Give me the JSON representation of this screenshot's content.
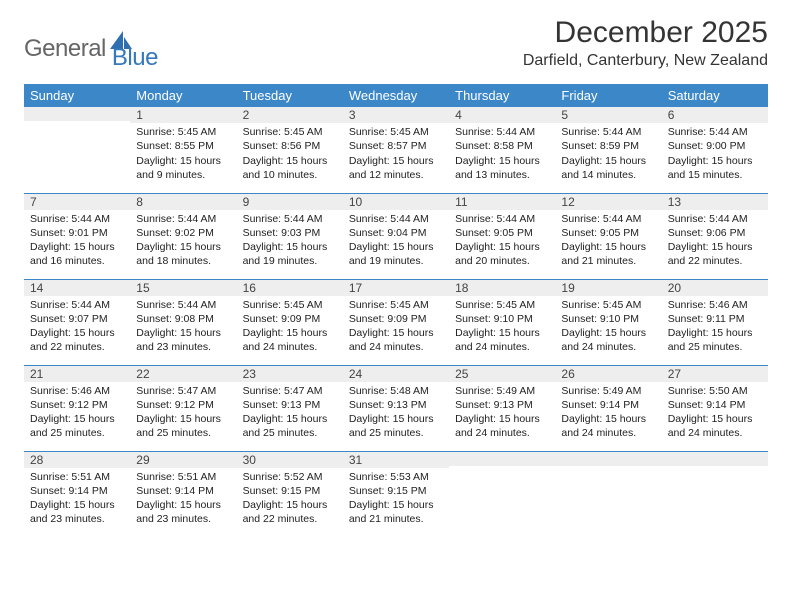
{
  "logo": {
    "text_general": "General",
    "text_blue": "Blue"
  },
  "title": "December 2025",
  "location": "Darfield, Canterbury, New Zealand",
  "colors": {
    "header_bg": "#3b87c8",
    "header_text": "#ffffff",
    "daynum_bg": "#eeeeee",
    "sep_line": "#3b87c8",
    "body_text": "#222222",
    "title_text": "#343434",
    "logo_gray": "#666666",
    "logo_blue": "#3478bd",
    "page_bg": "#ffffff"
  },
  "dow": [
    "Sunday",
    "Monday",
    "Tuesday",
    "Wednesday",
    "Thursday",
    "Friday",
    "Saturday"
  ],
  "weeks": [
    [
      {
        "n": "",
        "sr": "",
        "ss": "",
        "dl": ""
      },
      {
        "n": "1",
        "sr": "Sunrise: 5:45 AM",
        "ss": "Sunset: 8:55 PM",
        "dl": "Daylight: 15 hours and 9 minutes."
      },
      {
        "n": "2",
        "sr": "Sunrise: 5:45 AM",
        "ss": "Sunset: 8:56 PM",
        "dl": "Daylight: 15 hours and 10 minutes."
      },
      {
        "n": "3",
        "sr": "Sunrise: 5:45 AM",
        "ss": "Sunset: 8:57 PM",
        "dl": "Daylight: 15 hours and 12 minutes."
      },
      {
        "n": "4",
        "sr": "Sunrise: 5:44 AM",
        "ss": "Sunset: 8:58 PM",
        "dl": "Daylight: 15 hours and 13 minutes."
      },
      {
        "n": "5",
        "sr": "Sunrise: 5:44 AM",
        "ss": "Sunset: 8:59 PM",
        "dl": "Daylight: 15 hours and 14 minutes."
      },
      {
        "n": "6",
        "sr": "Sunrise: 5:44 AM",
        "ss": "Sunset: 9:00 PM",
        "dl": "Daylight: 15 hours and 15 minutes."
      }
    ],
    [
      {
        "n": "7",
        "sr": "Sunrise: 5:44 AM",
        "ss": "Sunset: 9:01 PM",
        "dl": "Daylight: 15 hours and 16 minutes."
      },
      {
        "n": "8",
        "sr": "Sunrise: 5:44 AM",
        "ss": "Sunset: 9:02 PM",
        "dl": "Daylight: 15 hours and 18 minutes."
      },
      {
        "n": "9",
        "sr": "Sunrise: 5:44 AM",
        "ss": "Sunset: 9:03 PM",
        "dl": "Daylight: 15 hours and 19 minutes."
      },
      {
        "n": "10",
        "sr": "Sunrise: 5:44 AM",
        "ss": "Sunset: 9:04 PM",
        "dl": "Daylight: 15 hours and 19 minutes."
      },
      {
        "n": "11",
        "sr": "Sunrise: 5:44 AM",
        "ss": "Sunset: 9:05 PM",
        "dl": "Daylight: 15 hours and 20 minutes."
      },
      {
        "n": "12",
        "sr": "Sunrise: 5:44 AM",
        "ss": "Sunset: 9:05 PM",
        "dl": "Daylight: 15 hours and 21 minutes."
      },
      {
        "n": "13",
        "sr": "Sunrise: 5:44 AM",
        "ss": "Sunset: 9:06 PM",
        "dl": "Daylight: 15 hours and 22 minutes."
      }
    ],
    [
      {
        "n": "14",
        "sr": "Sunrise: 5:44 AM",
        "ss": "Sunset: 9:07 PM",
        "dl": "Daylight: 15 hours and 22 minutes."
      },
      {
        "n": "15",
        "sr": "Sunrise: 5:44 AM",
        "ss": "Sunset: 9:08 PM",
        "dl": "Daylight: 15 hours and 23 minutes."
      },
      {
        "n": "16",
        "sr": "Sunrise: 5:45 AM",
        "ss": "Sunset: 9:09 PM",
        "dl": "Daylight: 15 hours and 24 minutes."
      },
      {
        "n": "17",
        "sr": "Sunrise: 5:45 AM",
        "ss": "Sunset: 9:09 PM",
        "dl": "Daylight: 15 hours and 24 minutes."
      },
      {
        "n": "18",
        "sr": "Sunrise: 5:45 AM",
        "ss": "Sunset: 9:10 PM",
        "dl": "Daylight: 15 hours and 24 minutes."
      },
      {
        "n": "19",
        "sr": "Sunrise: 5:45 AM",
        "ss": "Sunset: 9:10 PM",
        "dl": "Daylight: 15 hours and 24 minutes."
      },
      {
        "n": "20",
        "sr": "Sunrise: 5:46 AM",
        "ss": "Sunset: 9:11 PM",
        "dl": "Daylight: 15 hours and 25 minutes."
      }
    ],
    [
      {
        "n": "21",
        "sr": "Sunrise: 5:46 AM",
        "ss": "Sunset: 9:12 PM",
        "dl": "Daylight: 15 hours and 25 minutes."
      },
      {
        "n": "22",
        "sr": "Sunrise: 5:47 AM",
        "ss": "Sunset: 9:12 PM",
        "dl": "Daylight: 15 hours and 25 minutes."
      },
      {
        "n": "23",
        "sr": "Sunrise: 5:47 AM",
        "ss": "Sunset: 9:13 PM",
        "dl": "Daylight: 15 hours and 25 minutes."
      },
      {
        "n": "24",
        "sr": "Sunrise: 5:48 AM",
        "ss": "Sunset: 9:13 PM",
        "dl": "Daylight: 15 hours and 25 minutes."
      },
      {
        "n": "25",
        "sr": "Sunrise: 5:49 AM",
        "ss": "Sunset: 9:13 PM",
        "dl": "Daylight: 15 hours and 24 minutes."
      },
      {
        "n": "26",
        "sr": "Sunrise: 5:49 AM",
        "ss": "Sunset: 9:14 PM",
        "dl": "Daylight: 15 hours and 24 minutes."
      },
      {
        "n": "27",
        "sr": "Sunrise: 5:50 AM",
        "ss": "Sunset: 9:14 PM",
        "dl": "Daylight: 15 hours and 24 minutes."
      }
    ],
    [
      {
        "n": "28",
        "sr": "Sunrise: 5:51 AM",
        "ss": "Sunset: 9:14 PM",
        "dl": "Daylight: 15 hours and 23 minutes."
      },
      {
        "n": "29",
        "sr": "Sunrise: 5:51 AM",
        "ss": "Sunset: 9:14 PM",
        "dl": "Daylight: 15 hours and 23 minutes."
      },
      {
        "n": "30",
        "sr": "Sunrise: 5:52 AM",
        "ss": "Sunset: 9:15 PM",
        "dl": "Daylight: 15 hours and 22 minutes."
      },
      {
        "n": "31",
        "sr": "Sunrise: 5:53 AM",
        "ss": "Sunset: 9:15 PM",
        "dl": "Daylight: 15 hours and 21 minutes."
      },
      {
        "n": "",
        "sr": "",
        "ss": "",
        "dl": ""
      },
      {
        "n": "",
        "sr": "",
        "ss": "",
        "dl": ""
      },
      {
        "n": "",
        "sr": "",
        "ss": "",
        "dl": ""
      }
    ]
  ]
}
